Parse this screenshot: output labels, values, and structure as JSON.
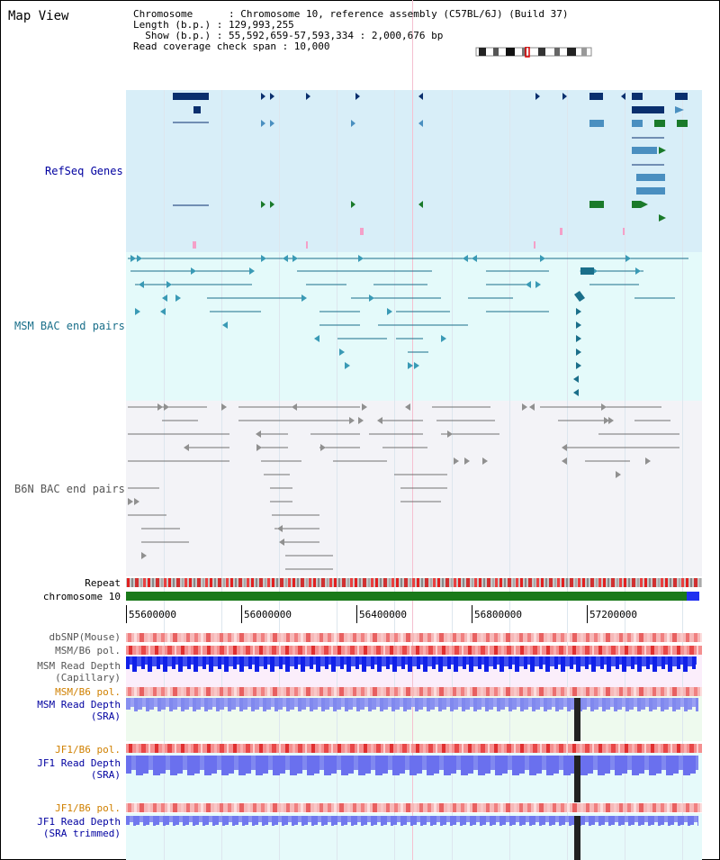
{
  "title": "Map View",
  "info": {
    "chromosome_line": "Chromosome      : Chromosome 10, reference assembly (C57BL/6J) (Build 37)",
    "length_line": "Length (b.p.) : 129,993,255",
    "show_line": "  Show (b.p.) : 55,592,659-57,593,334 : 2,000,676 bp",
    "coverage_line": "Read coverage check span : 10,000"
  },
  "tracks": {
    "refseq": "RefSeq Genes",
    "msm_bac": "MSM BAC end pairs",
    "b6n_bac": "B6N BAC end pairs",
    "repeat": "Repeat",
    "chromosome": "chromosome 10"
  },
  "axis": {
    "ticks": [
      "55600000",
      "56000000",
      "56400000",
      "56800000",
      "57200000"
    ]
  },
  "lower_tracks": {
    "dbsnp": "dbSNP(Mouse)",
    "msm_b6_pol": "MSM/B6 pol.",
    "msm_depth_cap_1": "MSM Read Depth",
    "msm_depth_cap_2": "(Capillary)",
    "msm_b6_pol_2": "MSM/B6 pol.",
    "msm_depth_sra_1": "MSM Read Depth",
    "msm_depth_sra_2": "(SRA)",
    "jf1_b6_pol": "JF1/B6 pol.",
    "jf1_depth_sra_1": "JF1 Read Depth",
    "jf1_depth_sra_2": "(SRA)",
    "jf1_b6_pol_2": "JF1/B6 pol.",
    "jf1_depth_trim_1": "JF1 Read Depth",
    "jf1_depth_trim_2": "(SRA trimmed)"
  },
  "colors": {
    "refseq_bg": "#dbeef8",
    "msm_bg": "#e6fafa",
    "b6n_bg": "#f2f2f6",
    "dark_gene": "#0a2f6e",
    "mid_gene": "#4a8fc0",
    "green_gene": "#1a7a2a",
    "msm_pair": "#1a6f8a",
    "b6n_pair": "#707070",
    "chrom_green": "#1a7a1a",
    "depth_blue": "#2030e0",
    "pol_red": "#e02020"
  }
}
